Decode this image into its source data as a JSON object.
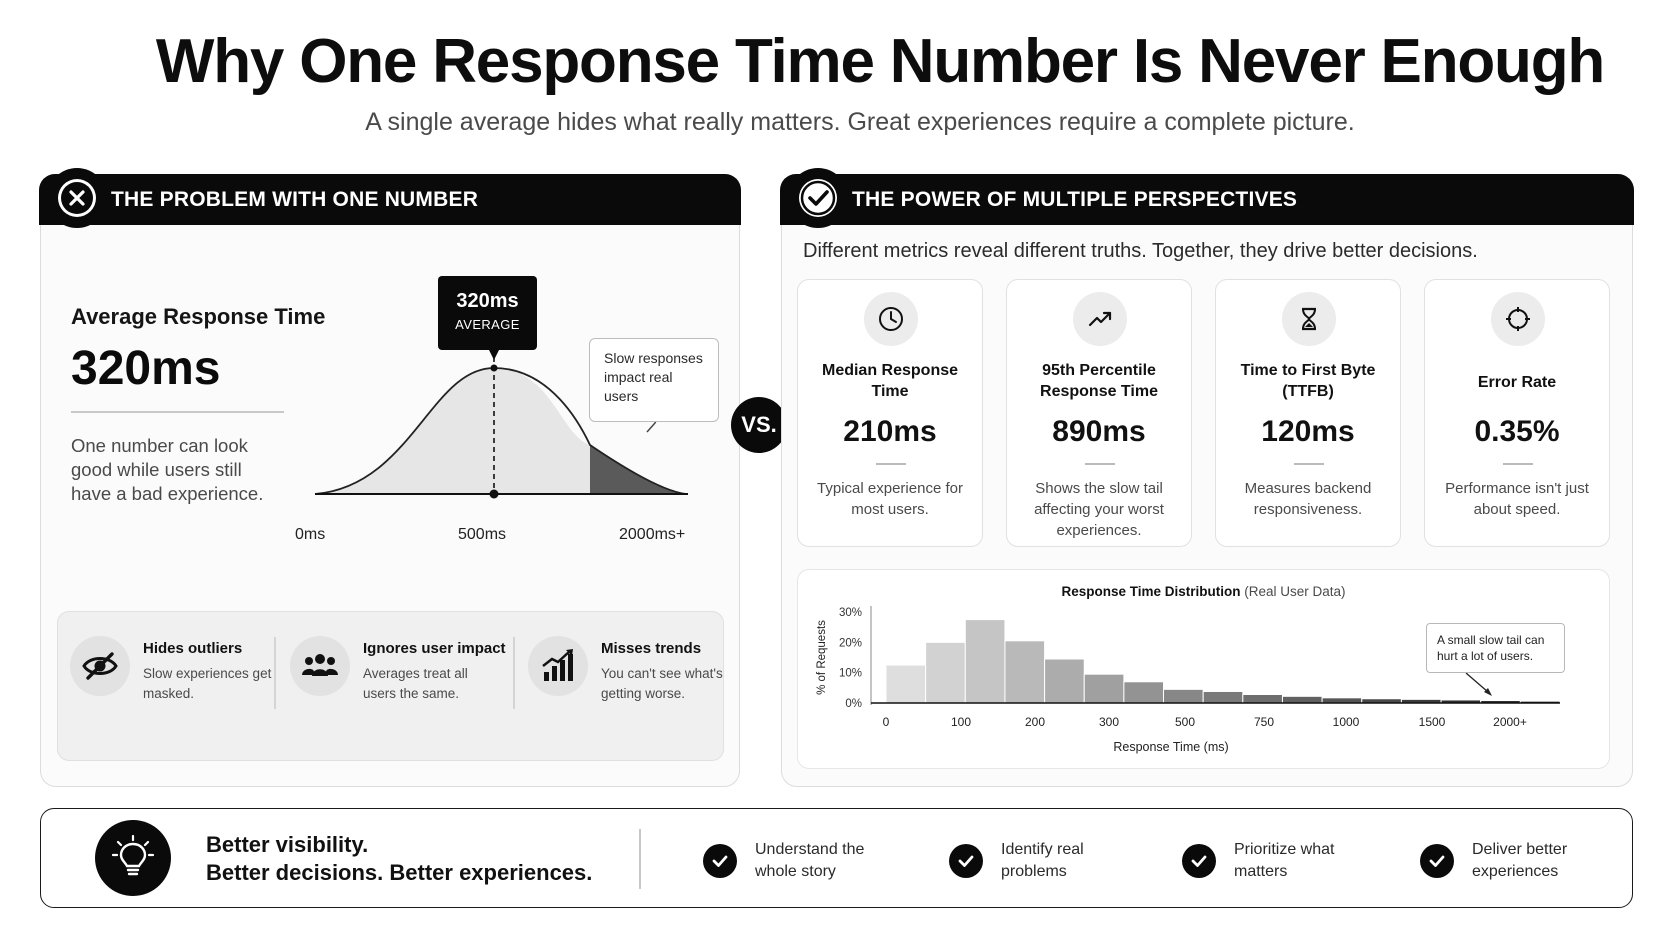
{
  "title": "Why One Response Time Number Is Never Enough",
  "subtitle": "A single average hides what really matters. Great experiences require a complete picture.",
  "left_panel": {
    "header": "THE PROBLEM WITH ONE NUMBER",
    "header_icon": "x-icon",
    "avg_label": "Average Response Time",
    "avg_value": "320ms",
    "avg_desc": "One number can look good while users still have a bad experience.",
    "tag_value": "320ms",
    "tag_label": "AVERAGE",
    "callout": "Slow responses impact real users",
    "axis_labels": [
      "0ms",
      "500ms",
      "2000ms+"
    ],
    "issues": [
      {
        "title": "Hides outliers",
        "desc": "Slow experiences get masked.",
        "icon": "eye-slash-icon"
      },
      {
        "title": "Ignores user impact",
        "desc": "Averages treat all users the same.",
        "icon": "users-icon"
      },
      {
        "title": "Misses trends",
        "desc": "You can't see what's getting worse.",
        "icon": "bar-chart-icon"
      }
    ]
  },
  "vs_label": "VS.",
  "right_panel": {
    "header": "THE POWER OF MULTIPLE PERSPECTIVES",
    "header_icon": "check-icon",
    "intro": "Different metrics reveal different truths. Together, they drive better decisions.",
    "metrics": [
      {
        "name": "Median Response Time",
        "value": "210ms",
        "desc": "Typical experience for most users.",
        "icon": "clock-icon"
      },
      {
        "name": "95th Percentile Response Time",
        "value": "890ms",
        "desc": "Shows the slow tail affecting your worst experiences.",
        "icon": "trend-up-icon"
      },
      {
        "name": "Time to First Byte (TTFB)",
        "value": "120ms",
        "desc": "Measures backend responsiveness.",
        "icon": "hourglass-icon"
      },
      {
        "name": "Error Rate",
        "value": "0.35%",
        "desc": "Performance isn't just about speed.",
        "icon": "target-icon"
      }
    ]
  },
  "chart_data": {
    "type": "bar",
    "title": "Response Time Distribution",
    "subtitle": "(Real User Data)",
    "xlabel": "Response Time (ms)",
    "ylabel": "% of Requests",
    "ylim": [
      0,
      30
    ],
    "yticks": [
      "30%",
      "20%",
      "10%",
      "0%"
    ],
    "xticks": [
      "0",
      "100",
      "200",
      "300",
      "500",
      "750",
      "1000",
      "1500",
      "2000+"
    ],
    "values": [
      12.5,
      20,
      27.5,
      20.5,
      14.5,
      9.5,
      7,
      4.5,
      3.8,
      2.8,
      2.2,
      1.7,
      1.4,
      1.2,
      1.0,
      0.8,
      0.6
    ],
    "annotation": "A small slow tail can hurt a lot of users."
  },
  "footer": {
    "headline_1": "Better visibility.",
    "headline_2": "Better decisions. Better experiences.",
    "icon": "lightbulb-icon",
    "items": [
      "Understand the whole story",
      "Identify real problems",
      "Prioritize what matters",
      "Deliver better experiences"
    ]
  }
}
